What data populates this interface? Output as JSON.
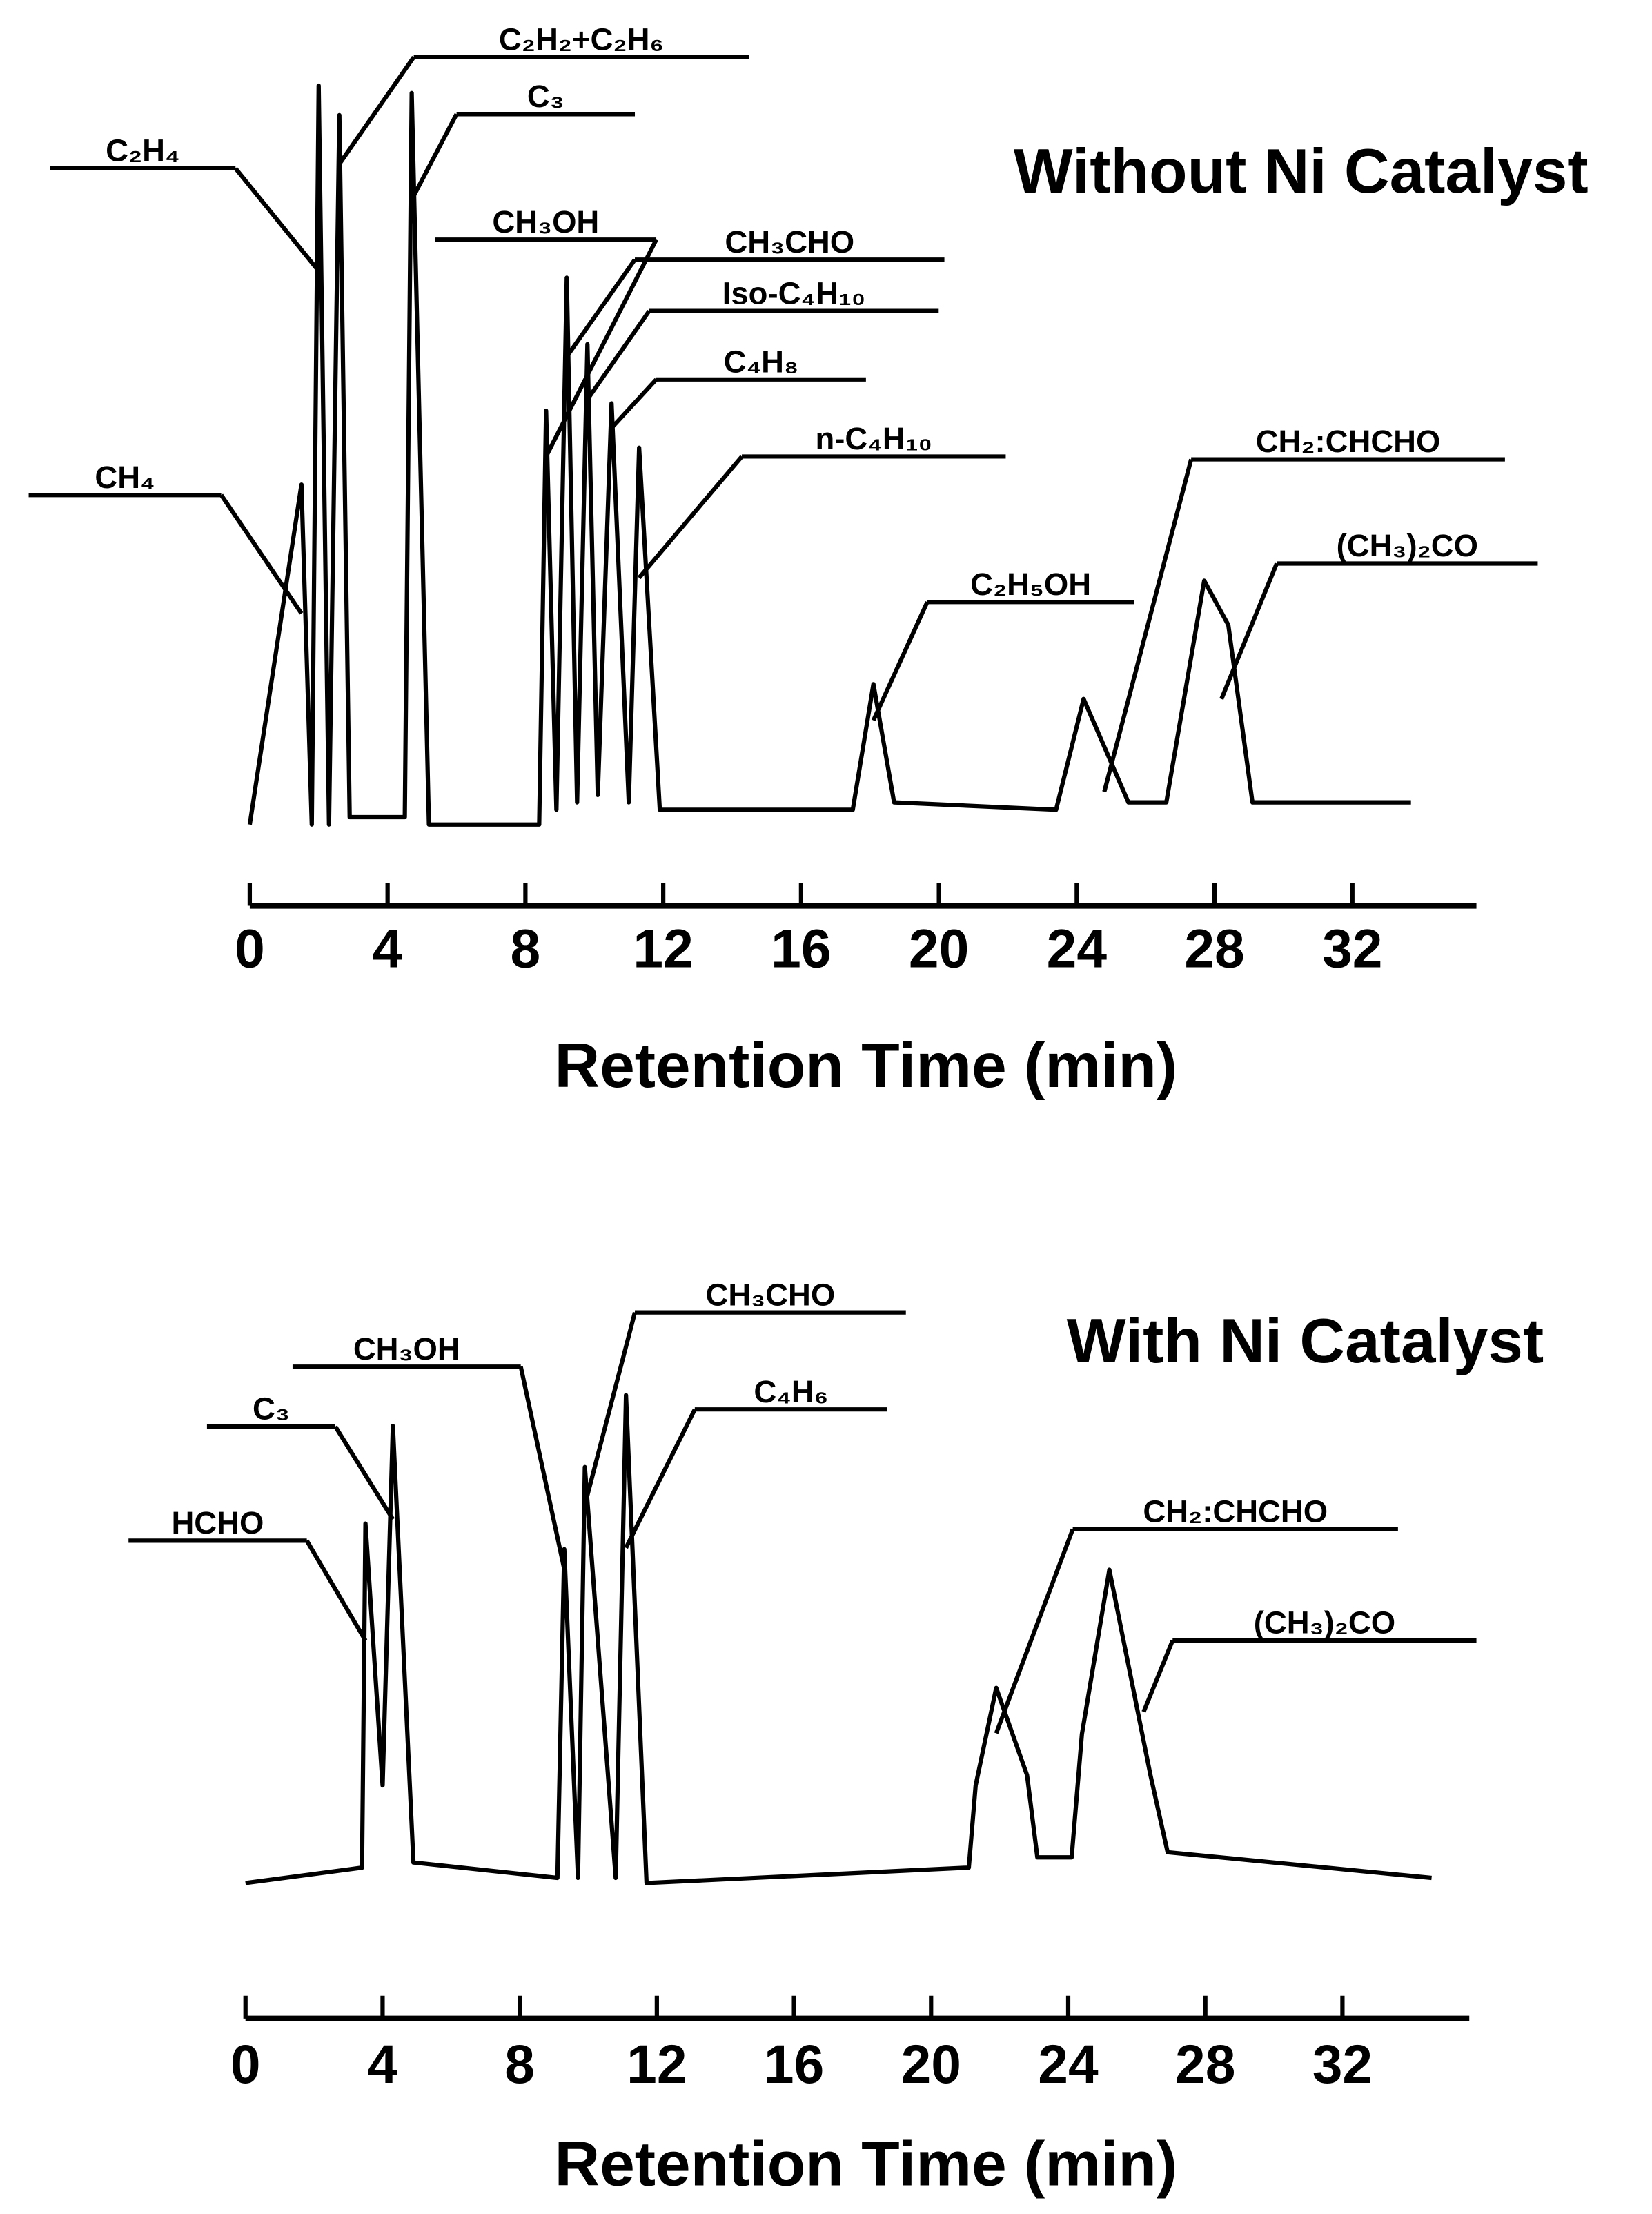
{
  "chart_data": [
    {
      "type": "line",
      "title": "Without Ni Catalyst",
      "xlabel": "Retention Time (min)",
      "color": "#000000",
      "x": [
        0,
        1.5,
        1.8,
        2.0,
        2.3,
        2.6,
        2.9,
        4.5,
        4.7,
        5.2,
        8.4,
        8.6,
        8.9,
        9.2,
        9.5,
        9.8,
        10.1,
        10.5,
        11.0,
        11.3,
        11.9,
        17.5,
        18.1,
        18.7,
        23.4,
        24.2,
        25.5,
        26.6,
        27.7,
        28.4,
        29.1,
        33.7
      ],
      "values": [
        0,
        46,
        0,
        100,
        0,
        96,
        1,
        1,
        99,
        0,
        0,
        56,
        2,
        74,
        3,
        65,
        4,
        57,
        3,
        51,
        2,
        2,
        19,
        3,
        2,
        17,
        3,
        3,
        33,
        27,
        3,
        3
      ],
      "xlim": [
        0,
        35.6
      ],
      "ylim": [
        0,
        100
      ],
      "xticks": [
        0,
        4,
        8,
        12,
        16,
        20,
        24,
        28,
        32
      ],
      "annotations": [
        {
          "text": "CH₄",
          "x": 1.5
        },
        {
          "text": "C₂H₄",
          "x": 2.0
        },
        {
          "text": "C₂H₂+C₂H₆",
          "x": 2.6
        },
        {
          "text": "C₃",
          "x": 4.7
        },
        {
          "text": "CH₃OH",
          "x": 8.6
        },
        {
          "text": "CH₃CHO",
          "x": 9.2
        },
        {
          "text": "Iso-C₄H₁₀",
          "x": 9.8
        },
        {
          "text": "C₄H₈",
          "x": 10.5
        },
        {
          "text": "n-C₄H₁₀",
          "x": 11.3
        },
        {
          "text": "C₂H₅OH",
          "x": 18.1
        },
        {
          "text": "CH₂:CHCHO",
          "x": 24.8
        },
        {
          "text": "(CH₃)₂CO",
          "x": 28.2
        }
      ]
    },
    {
      "type": "line",
      "title": "With Ni Catalyst",
      "xlabel": "Retention Time (min)",
      "color": "#000000",
      "x": [
        0,
        3.4,
        3.5,
        4.0,
        4.3,
        4.9,
        9.1,
        9.3,
        9.7,
        9.9,
        10.8,
        11.1,
        11.7,
        21.1,
        21.3,
        21.9,
        22.8,
        23.1,
        24.1,
        24.4,
        25.2,
        26.4,
        26.9,
        34.6
      ],
      "values": [
        0,
        3,
        70,
        19,
        89,
        4,
        1,
        65,
        1,
        81,
        1,
        95,
        0,
        3,
        19,
        38,
        21,
        5,
        5,
        29,
        61,
        21,
        6,
        1
      ],
      "xlim": [
        0,
        35.7
      ],
      "ylim": [
        0,
        100
      ],
      "xticks": [
        0,
        4,
        8,
        12,
        16,
        20,
        24,
        28,
        32
      ],
      "annotations": [
        {
          "text": "HCHO",
          "x": 3.5
        },
        {
          "text": "C₃",
          "x": 4.3
        },
        {
          "text": "CH₃OH",
          "x": 9.3
        },
        {
          "text": "CH₃CHO",
          "x": 9.9
        },
        {
          "text": "C₄H₆",
          "x": 11.1
        },
        {
          "text": "CH₂:CHCHO",
          "x": 21.9
        },
        {
          "text": "(CH₃)₂CO",
          "x": 26.2
        }
      ]
    }
  ]
}
